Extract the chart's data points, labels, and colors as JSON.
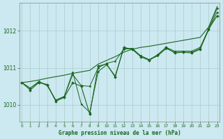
{
  "title": "Graphe pression niveau de la mer (hPa)",
  "background_color": "#cce8f0",
  "plot_bg_color": "#cce8f0",
  "grid_color": "#aacccc",
  "line_color": "#1a6620",
  "marker_color": "#1a6620",
  "label_color": "#1a6620",
  "bottom_bg": "#b0d0d8",
  "x_ticks": [
    0,
    1,
    2,
    3,
    4,
    5,
    6,
    7,
    8,
    9,
    10,
    11,
    12,
    13,
    14,
    15,
    16,
    17,
    18,
    19,
    20,
    21,
    22,
    23
  ],
  "y_ticks": [
    1010,
    1011,
    1012
  ],
  "ylim": [
    1009.55,
    1012.75
  ],
  "xlim": [
    -0.3,
    23.3
  ],
  "trend_line": [
    1010.6,
    1010.63,
    1010.67,
    1010.72,
    1010.76,
    1010.8,
    1010.85,
    1010.89,
    1010.93,
    1011.1,
    1011.2,
    1011.3,
    1011.42,
    1011.5,
    1011.55,
    1011.58,
    1011.62,
    1011.66,
    1011.7,
    1011.74,
    1011.78,
    1011.82,
    1012.1,
    1012.65
  ],
  "series1": [
    1010.6,
    1010.4,
    1010.6,
    1010.55,
    1010.1,
    1010.2,
    1010.6,
    1010.5,
    1009.75,
    1011.05,
    1011.1,
    1010.75,
    1011.55,
    1011.5,
    1011.3,
    1011.2,
    1011.35,
    1011.55,
    1011.4,
    1011.42,
    1011.4,
    1011.5,
    1012.05,
    1012.4
  ],
  "series2": [
    1010.6,
    1010.45,
    1010.62,
    1010.52,
    1010.12,
    1010.22,
    1010.82,
    1010.52,
    1010.5,
    1011.0,
    1011.12,
    1011.18,
    1011.5,
    1011.52,
    1011.32,
    1011.22,
    1011.32,
    1011.52,
    1011.42,
    1011.42,
    1011.42,
    1011.52,
    1012.02,
    1012.5
  ],
  "series3": [
    1010.6,
    1010.45,
    1010.63,
    1010.53,
    1010.13,
    1010.23,
    1010.88,
    1010.02,
    1009.8,
    1010.9,
    1011.08,
    1010.78,
    1011.52,
    1011.52,
    1011.32,
    1011.22,
    1011.35,
    1011.55,
    1011.45,
    1011.45,
    1011.45,
    1011.55,
    1012.05,
    1012.6
  ]
}
